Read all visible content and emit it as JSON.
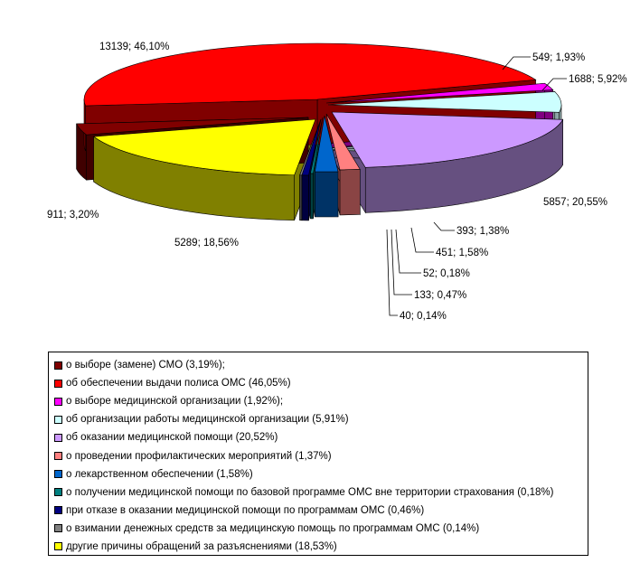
{
  "chart_data": {
    "type": "pie",
    "style": "3d-exploded",
    "slices": [
      {
        "value": 911,
        "label": "911; 3,20%",
        "legend": "о выборе (замене) СМО (3,19%);",
        "color": "#800000",
        "side": "#400000"
      },
      {
        "value": 13139,
        "label": "13139; 46,10%",
        "legend": "об обеспечении выдачи полиса ОМС (46,05%)",
        "color": "#ff0000",
        "side": "#800000"
      },
      {
        "value": 549,
        "label": "549; 1,93%",
        "legend": "о выборе медицинской организации (1,92%);",
        "color": "#ff00ff",
        "side": "#800080"
      },
      {
        "value": 1688,
        "label": "1688; 5,92%",
        "legend": "об организации работы медицинской организации (5,91%)",
        "color": "#ccffff",
        "side": "#8ca6a6"
      },
      {
        "value": 5857,
        "label": "5857; 20,55%",
        "legend": "об оказании медицинской помощи (20,52%)",
        "color": "#cc99ff",
        "side": "#665080"
      },
      {
        "value": 393,
        "label": "393; 1,38%",
        "legend": "о проведении профилактических мероприятий (1,37%)",
        "color": "#ff8080",
        "side": "#8a4444"
      },
      {
        "value": 451,
        "label": "451; 1,58%",
        "legend": "о лекарственном обеспечении (1,58%)",
        "color": "#0066cc",
        "side": "#003366"
      },
      {
        "value": 52,
        "label": "52; 0,18%",
        "legend": "о получении медицинской помощи по базовой программе ОМС вне территории страхования (0,18%)",
        "color": "#008080",
        "side": "#004040"
      },
      {
        "value": 133,
        "label": "133; 0,47%",
        "legend": "при отказе в оказании медицинской помощи по программам ОМС (0,46%)",
        "color": "#000080",
        "side": "#000040"
      },
      {
        "value": 40,
        "label": "40; 0,14%",
        "legend": "о взимании денежных средств за медицинскую помощь по программам ОМС (0,14%)",
        "color": "#808080",
        "side": "#404040"
      },
      {
        "value": 5289,
        "label": "5289; 18,56%",
        "legend": "другие причины обращений за разъяснениями (18,53%)",
        "color": "#ffff00",
        "side": "#808000"
      }
    ],
    "legend_position": "bottom"
  }
}
